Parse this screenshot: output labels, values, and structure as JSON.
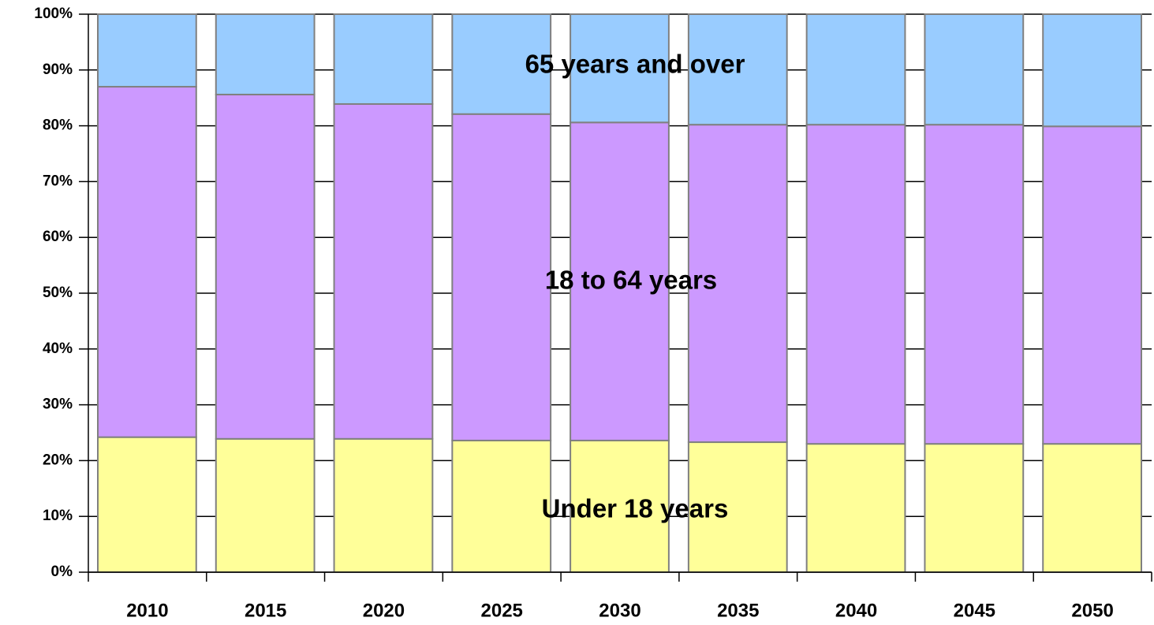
{
  "chart_data": {
    "type": "bar",
    "stacked": true,
    "categories": [
      "2010",
      "2015",
      "2020",
      "2025",
      "2030",
      "2035",
      "2040",
      "2045",
      "2050"
    ],
    "series": [
      {
        "name": "Under 18 years",
        "color": "#ffff99",
        "values": [
          24.2,
          23.9,
          23.9,
          23.6,
          23.6,
          23.3,
          23.0,
          23.0,
          23.0
        ]
      },
      {
        "name": "18 to 64 years",
        "color": "#cc99ff",
        "values": [
          62.8,
          61.7,
          60.0,
          58.5,
          57.0,
          56.9,
          57.2,
          57.2,
          56.9
        ]
      },
      {
        "name": "65 years and over",
        "color": "#99ccff",
        "values": [
          13.0,
          14.4,
          16.1,
          17.9,
          19.4,
          19.8,
          19.8,
          19.8,
          20.1
        ]
      }
    ],
    "ylim": [
      0,
      100
    ],
    "yticks": [
      {
        "value": 0,
        "label": "0%"
      },
      {
        "value": 10,
        "label": "10%"
      },
      {
        "value": 20,
        "label": "20%"
      },
      {
        "value": 30,
        "label": "30%"
      },
      {
        "value": 40,
        "label": "40%"
      },
      {
        "value": 50,
        "label": "50%"
      },
      {
        "value": 60,
        "label": "60%"
      },
      {
        "value": 70,
        "label": "70%"
      },
      {
        "value": 80,
        "label": "80%"
      },
      {
        "value": 90,
        "label": "90%"
      },
      {
        "value": 100,
        "label": "100%"
      }
    ],
    "grid": true
  }
}
